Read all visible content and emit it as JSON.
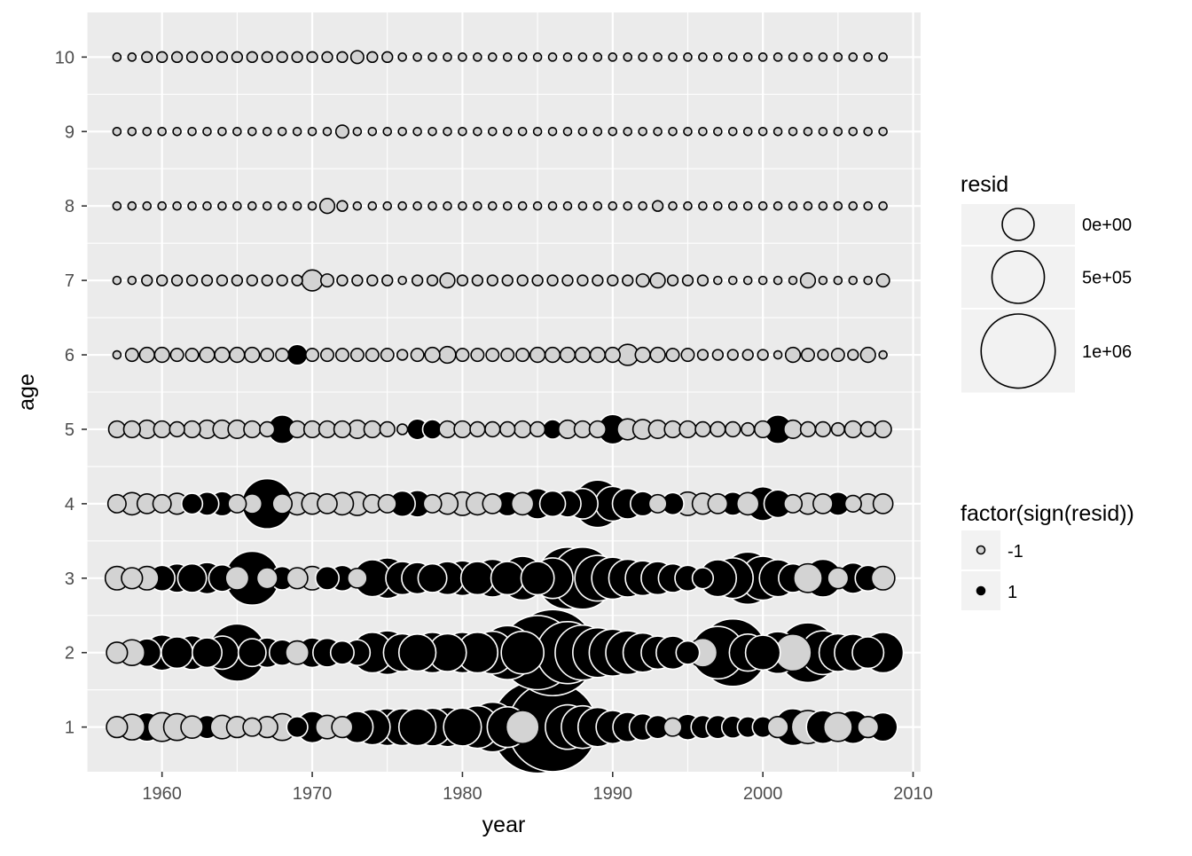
{
  "chart_data": {
    "type": "scatter",
    "variant": "bubble",
    "title": "",
    "xlabel": "year",
    "ylabel": "age",
    "xlim": [
      1955,
      2010.5
    ],
    "ylim": [
      0.4,
      10.6
    ],
    "x_ticks": [
      1960,
      1970,
      1980,
      1990,
      2000,
      2010
    ],
    "y_ticks": [
      1,
      2,
      3,
      4,
      5,
      6,
      7,
      8,
      9,
      10
    ],
    "grid": true,
    "panel_background": "#ebebeb",
    "years": [
      1957,
      1958,
      1959,
      1960,
      1961,
      1962,
      1963,
      1964,
      1965,
      1966,
      1967,
      1968,
      1969,
      1970,
      1971,
      1972,
      1973,
      1974,
      1975,
      1976,
      1977,
      1978,
      1979,
      1980,
      1981,
      1982,
      1983,
      1984,
      1985,
      1986,
      1987,
      1988,
      1989,
      1990,
      1991,
      1992,
      1993,
      1994,
      1995,
      1996,
      1997,
      1998,
      1999,
      2000,
      2001,
      2002,
      2003,
      2004,
      2005,
      2006,
      2007,
      2008
    ],
    "ages": [
      1,
      2,
      3,
      4,
      5,
      6,
      7,
      8,
      9,
      10
    ],
    "resid": [
      [
        -80000,
        -120000,
        150000,
        -150000,
        -130000,
        -90000,
        100000,
        -100000,
        -80000,
        -60000,
        -80000,
        -130000,
        80000,
        180000,
        -100000,
        -80000,
        180000,
        230000,
        250000,
        250000,
        250000,
        260000,
        280000,
        260000,
        330000,
        450000,
        300000,
        -200000,
        1550000,
        1450000,
        360000,
        330000,
        280000,
        200000,
        160000,
        130000,
        100000,
        -60000,
        120000,
        100000,
        100000,
        90000,
        80000,
        80000,
        -80000,
        250000,
        -200000,
        200000,
        -150000,
        200000,
        -80000,
        150000
      ],
      [
        -80000,
        -120000,
        140000,
        230000,
        180000,
        210000,
        160000,
        200000,
        600000,
        140000,
        160000,
        120000,
        -100000,
        160000,
        150000,
        100000,
        120000,
        300000,
        350000,
        260000,
        250000,
        300000,
        260000,
        300000,
        300000,
        330000,
        530000,
        330000,
        1000000,
        1350000,
        700000,
        550000,
        450000,
        400000,
        350000,
        280000,
        200000,
        200000,
        100000,
        -150000,
        500000,
        830000,
        250000,
        220000,
        320000,
        -250000,
        650000,
        350000,
        260000,
        250000,
        180000,
        300000
      ],
      [
        -100000,
        -80000,
        -100000,
        120000,
        150000,
        150000,
        180000,
        130000,
        -100000,
        530000,
        -80000,
        100000,
        -80000,
        -100000,
        100000,
        120000,
        -70000,
        250000,
        300000,
        200000,
        180000,
        150000,
        200000,
        220000,
        200000,
        260000,
        200000,
        350000,
        200000,
        300000,
        700000,
        700000,
        380000,
        320000,
        260000,
        220000,
        200000,
        150000,
        120000,
        80000,
        250000,
        300000,
        500000,
        350000,
        250000,
        150000,
        -150000,
        260000,
        -80000,
        170000,
        120000,
        -100000
      ],
      [
        -60000,
        -90000,
        -70000,
        -60000,
        -80000,
        80000,
        100000,
        110000,
        -60000,
        -70000,
        460000,
        -70000,
        -90000,
        -80000,
        -70000,
        -90000,
        -100000,
        -60000,
        -60000,
        120000,
        130000,
        -60000,
        -80000,
        -100000,
        -90000,
        -70000,
        110000,
        -90000,
        170000,
        120000,
        130000,
        170000,
        410000,
        220000,
        170000,
        110000,
        -60000,
        90000,
        -100000,
        -80000,
        -70000,
        100000,
        -90000,
        210000,
        140000,
        -60000,
        -80000,
        -70000,
        100000,
        -50000,
        -70000,
        -70000
      ],
      [
        -50000,
        -50000,
        -60000,
        -50000,
        -40000,
        -50000,
        -60000,
        -60000,
        -60000,
        -50000,
        -40000,
        150000,
        -50000,
        -50000,
        -50000,
        -50000,
        -60000,
        -50000,
        -40000,
        -20000,
        80000,
        70000,
        -50000,
        -50000,
        -40000,
        -40000,
        -40000,
        -50000,
        -40000,
        70000,
        -60000,
        -50000,
        -50000,
        160000,
        -80000,
        -70000,
        -60000,
        -50000,
        -50000,
        -40000,
        -40000,
        -40000,
        -30000,
        -50000,
        150000,
        -60000,
        -40000,
        -40000,
        -30000,
        -50000,
        -40000,
        -50000
      ],
      [
        -10000,
        -30000,
        -40000,
        -40000,
        -30000,
        -30000,
        -40000,
        -40000,
        -40000,
        -40000,
        -30000,
        -30000,
        80000,
        -30000,
        -30000,
        -30000,
        -30000,
        -30000,
        -30000,
        -20000,
        -30000,
        -40000,
        -50000,
        -30000,
        -30000,
        -30000,
        -30000,
        -30000,
        -40000,
        -40000,
        -40000,
        -40000,
        -40000,
        -40000,
        -80000,
        -40000,
        -40000,
        -30000,
        -30000,
        -20000,
        -20000,
        -20000,
        -20000,
        -20000,
        -10000,
        -40000,
        -30000,
        -20000,
        -30000,
        -20000,
        -40000,
        -10000
      ],
      [
        -10000,
        -10000,
        -20000,
        -20000,
        -20000,
        -20000,
        -20000,
        -20000,
        -20000,
        -20000,
        -20000,
        -20000,
        -20000,
        -80000,
        -30000,
        -20000,
        -20000,
        -20000,
        -20000,
        -10000,
        -20000,
        -20000,
        -40000,
        -20000,
        -20000,
        -20000,
        -20000,
        -20000,
        -20000,
        -20000,
        -20000,
        -20000,
        -20000,
        -20000,
        -20000,
        -30000,
        -40000,
        -20000,
        -20000,
        -20000,
        -10000,
        -10000,
        -10000,
        -10000,
        -5000,
        -10000,
        -40000,
        -10000,
        -10000,
        -10000,
        -10000,
        -30000
      ],
      [
        -10000,
        -10000,
        -10000,
        -10000,
        -10000,
        -10000,
        -10000,
        -10000,
        -10000,
        -10000,
        -10000,
        -10000,
        -10000,
        -10000,
        -40000,
        -20000,
        -10000,
        -10000,
        -10000,
        -10000,
        -10000,
        -10000,
        -10000,
        -10000,
        -10000,
        -10000,
        -10000,
        -10000,
        -10000,
        -10000,
        -10000,
        -10000,
        -10000,
        -10000,
        -10000,
        -10000,
        -20000,
        -10000,
        -10000,
        -10000,
        -10000,
        -10000,
        -10000,
        -10000,
        -5000,
        -5000,
        -5000,
        -5000,
        -5000,
        -5000,
        -5000,
        -5000
      ],
      [
        -5000,
        -10000,
        -10000,
        -10000,
        -10000,
        -10000,
        -10000,
        -10000,
        -10000,
        -10000,
        -10000,
        -10000,
        -10000,
        -10000,
        -10000,
        -30000,
        -10000,
        -10000,
        -10000,
        -10000,
        -5000,
        -5000,
        -5000,
        -10000,
        -10000,
        -10000,
        -10000,
        -10000,
        -10000,
        -10000,
        -10000,
        -10000,
        -10000,
        -10000,
        -10000,
        -10000,
        -10000,
        -10000,
        -10000,
        -10000,
        -10000,
        -10000,
        -10000,
        -5000,
        -5000,
        -5000,
        -5000,
        -2000,
        -5000,
        -5000,
        -5000,
        -2000
      ],
      [
        -10000,
        -10000,
        -20000,
        -20000,
        -20000,
        -20000,
        -20000,
        -20000,
        -20000,
        -20000,
        -20000,
        -20000,
        -20000,
        -20000,
        -20000,
        -20000,
        -30000,
        -20000,
        -20000,
        -10000,
        -10000,
        -10000,
        -10000,
        -5000,
        -5000,
        -10000,
        -10000,
        -10000,
        -10000,
        -10000,
        -10000,
        -10000,
        -10000,
        -10000,
        -10000,
        -10000,
        -10000,
        -10000,
        -10000,
        -10000,
        -5000,
        -5000,
        -5000,
        -5000,
        -5000,
        -5000,
        -5000,
        -2000,
        -5000,
        -5000,
        -5000,
        -2000
      ]
    ],
    "fill_by_sign": {
      "-1": "#d3d3d3",
      "1": "#000000"
    },
    "stroke_by_sign": {
      "-1": "#000000",
      "1": "#ffffff"
    },
    "legends": [
      {
        "title": "resid",
        "position": "right",
        "entries": [
          {
            "label": "0e+00",
            "value": 0
          },
          {
            "label": "5e+05",
            "value": 500000
          },
          {
            "label": "1e+06",
            "value": 1000000
          }
        ]
      },
      {
        "title": "factor(sign(resid))",
        "position": "right",
        "entries": [
          {
            "label": "-1",
            "sign": -1
          },
          {
            "label": "1",
            "sign": 1
          }
        ]
      }
    ]
  }
}
